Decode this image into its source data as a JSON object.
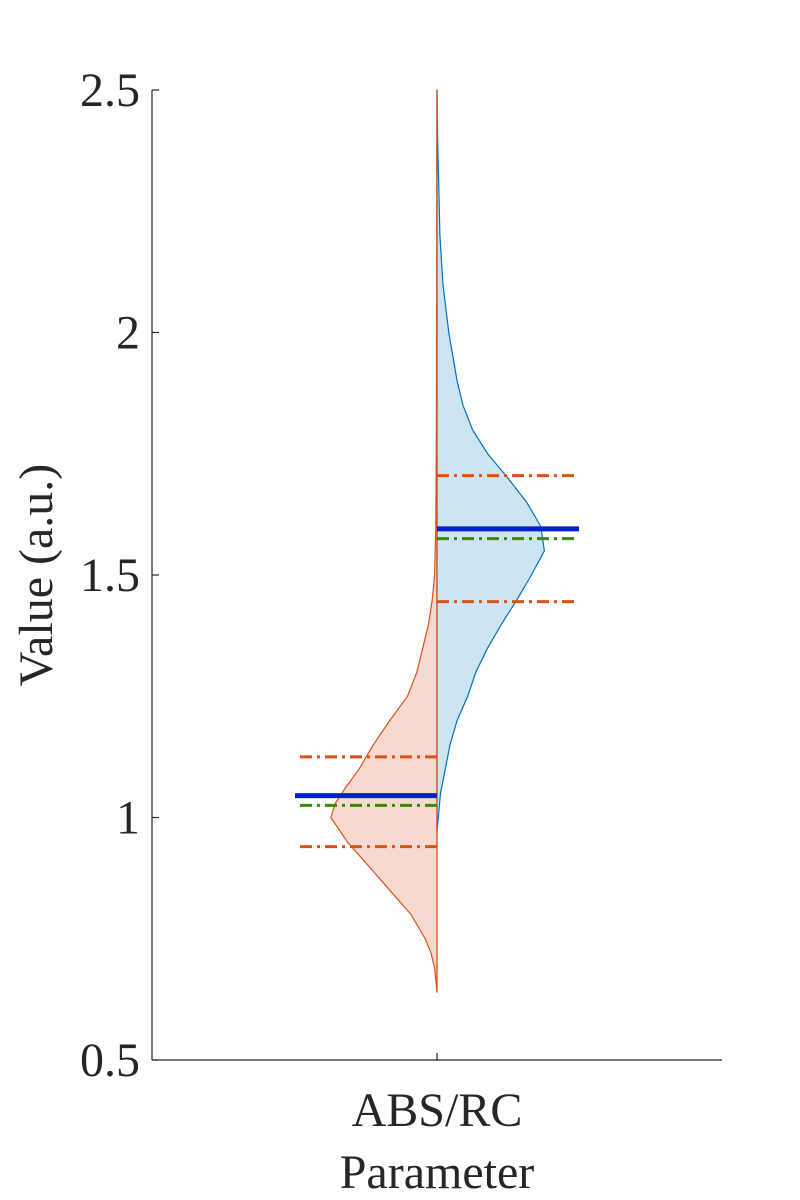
{
  "chart_data": {
    "type": "violin",
    "title": "",
    "ylabel": "Value (a.u.)",
    "xlabel": "Parameter",
    "categories": [
      "ABS/RC"
    ],
    "ylim": [
      0.5,
      2.5
    ],
    "yticks": [
      0.5,
      1,
      1.5,
      2,
      2.5
    ],
    "ytick_labels": [
      "0.5",
      "1",
      "1.5",
      "2",
      "2.5"
    ],
    "grid": false,
    "legend": "none",
    "colors": {
      "left_fill": "#f7d9cf",
      "left_edge": "#d95319",
      "right_fill": "#cde4f2",
      "right_edge": "#0072bd",
      "mean_line": "#0022cc",
      "median_line": "#3a8a00",
      "quartile_line": "#d95319",
      "axis": "#262626"
    },
    "series": [
      {
        "side": "left",
        "min": 0.64,
        "max": 2.5,
        "mean": 1.045,
        "median": 1.025,
        "q1": 0.94,
        "q3": 1.125,
        "density_profile": [
          [
            0.64,
            0.0
          ],
          [
            0.69,
            0.02
          ],
          [
            0.72,
            0.05
          ],
          [
            0.75,
            0.1
          ],
          [
            0.8,
            0.22
          ],
          [
            0.85,
            0.4
          ],
          [
            0.9,
            0.58
          ],
          [
            0.95,
            0.76
          ],
          [
            1.0,
            0.9
          ],
          [
            1.03,
            0.86
          ],
          [
            1.06,
            0.78
          ],
          [
            1.1,
            0.66
          ],
          [
            1.15,
            0.54
          ],
          [
            1.2,
            0.4
          ],
          [
            1.25,
            0.25
          ],
          [
            1.3,
            0.17
          ],
          [
            1.35,
            0.12
          ],
          [
            1.4,
            0.07
          ],
          [
            1.45,
            0.04
          ],
          [
            1.5,
            0.02
          ],
          [
            1.6,
            0.01
          ],
          [
            1.8,
            0.005
          ],
          [
            2.5,
            0.0
          ]
        ]
      },
      {
        "side": "right",
        "min": 0.97,
        "max": 2.5,
        "mean": 1.595,
        "median": 1.575,
        "q1": 1.445,
        "q3": 1.705,
        "density_profile": [
          [
            0.97,
            0.0
          ],
          [
            1.05,
            0.03
          ],
          [
            1.1,
            0.07
          ],
          [
            1.15,
            0.11
          ],
          [
            1.2,
            0.17
          ],
          [
            1.25,
            0.26
          ],
          [
            1.3,
            0.33
          ],
          [
            1.35,
            0.43
          ],
          [
            1.4,
            0.55
          ],
          [
            1.45,
            0.68
          ],
          [
            1.5,
            0.8
          ],
          [
            1.55,
            0.91
          ],
          [
            1.6,
            0.88
          ],
          [
            1.65,
            0.76
          ],
          [
            1.7,
            0.6
          ],
          [
            1.75,
            0.43
          ],
          [
            1.8,
            0.3
          ],
          [
            1.85,
            0.22
          ],
          [
            1.9,
            0.17
          ],
          [
            2.0,
            0.1
          ],
          [
            2.1,
            0.05
          ],
          [
            2.2,
            0.025
          ],
          [
            2.3,
            0.015
          ],
          [
            2.4,
            0.005
          ],
          [
            2.5,
            0.0
          ]
        ]
      }
    ]
  }
}
